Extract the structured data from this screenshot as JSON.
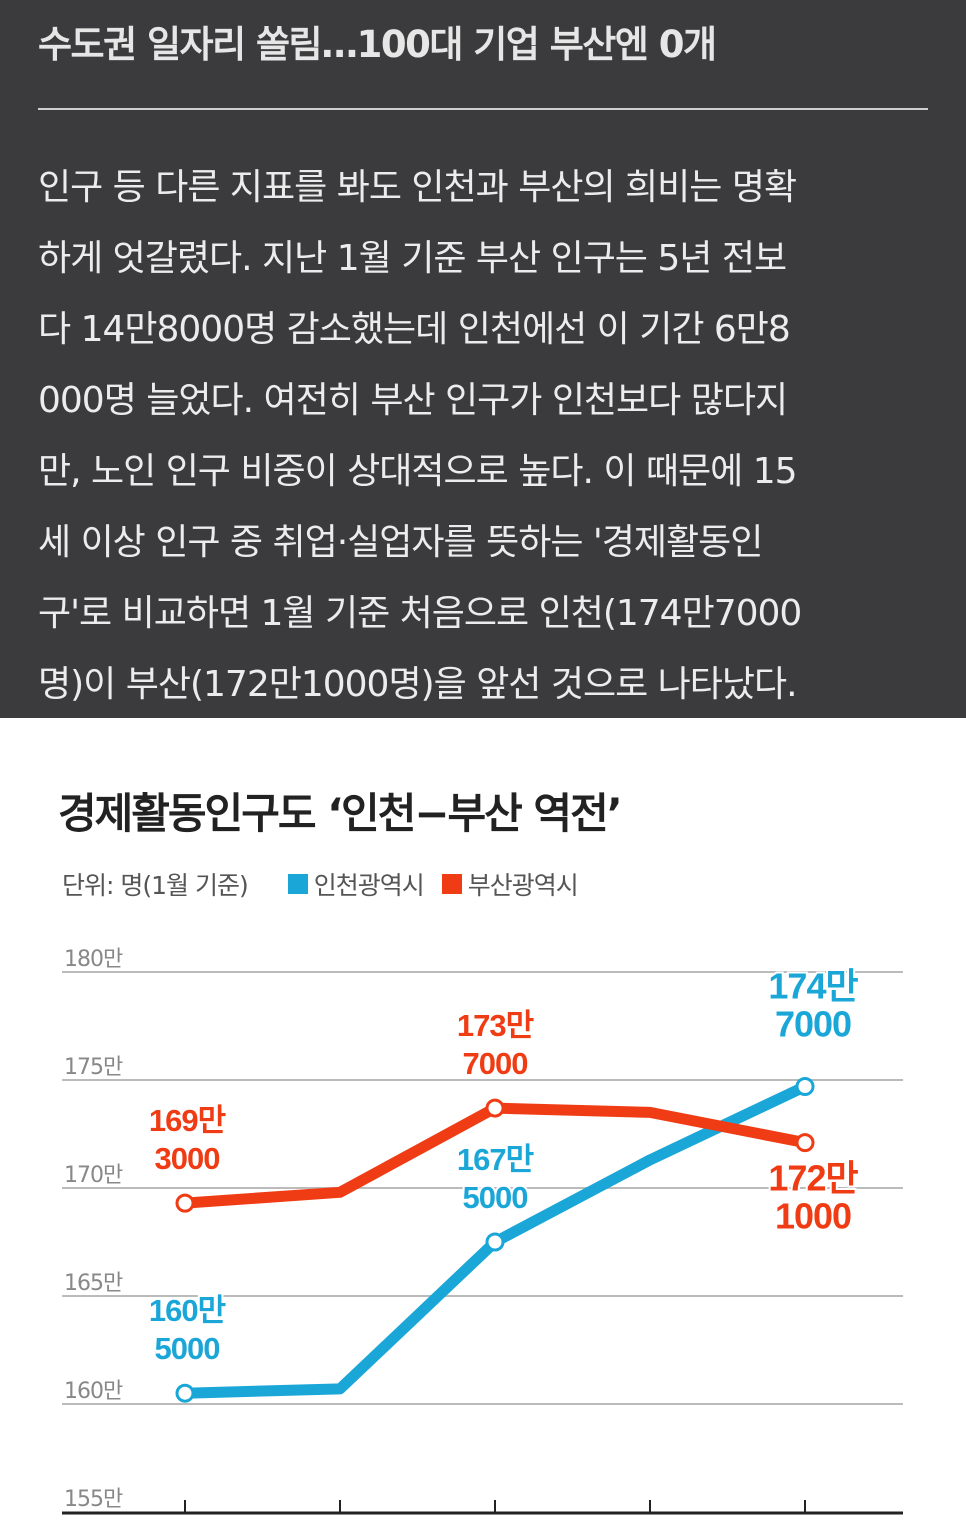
{
  "article": {
    "headline": "수도권 일자리 쏠림…100대 기업 부산엔 0개",
    "paragraph_lines": [
      "인구 등 다른 지표를 봐도 인천과 부산의 희비는 명확",
      "하게 엇갈렸다. 지난 1월 기준 부산 인구는 5년 전보",
      "다 14만8000명 감소했는데 인천에선 이 기간 6만8",
      "000명 늘었다. 여전히 부산 인구가 인천보다 많다지",
      "만, 노인 인구 비중이 상대적으로 높다. 이 때문에 15",
      "세 이상 인구 중 취업·실업자를 뜻하는 '경제활동인",
      "구'로 비교하면 1월 기준 처음으로 인천(174만7000",
      "명)이 부산(172만1000명)을 앞선 것으로 나타났다."
    ]
  },
  "chart_data": {
    "type": "line",
    "title": "경제활동인구도 ‘인천−부산 역전’",
    "unit_label": "단위: 명(1월 기준)",
    "ylim": [
      155,
      180
    ],
    "yticks": [
      180,
      175,
      170,
      165,
      160,
      155
    ],
    "ytick_labels": [
      "180만",
      "175만",
      "170만",
      "165만",
      "160만",
      "155만"
    ],
    "x": [
      1,
      2,
      3,
      4,
      5
    ],
    "grid": true,
    "legend_placement": "top-left",
    "series": [
      {
        "name": "인천광역시",
        "color": "#1aa7d8",
        "values": [
          160.5,
          160.7,
          167.5,
          171.3,
          174.7
        ],
        "labels": [
          [
            "160만",
            "5000"
          ],
          null,
          [
            "167만",
            "5000"
          ],
          null,
          [
            "174만",
            "7000"
          ]
        ]
      },
      {
        "name": "부산광역시",
        "color": "#f03c14",
        "values": [
          169.3,
          169.8,
          173.7,
          173.5,
          172.1
        ],
        "labels": [
          [
            "169만",
            "3000"
          ],
          null,
          [
            "173만",
            "7000"
          ],
          null,
          [
            "172만",
            "1000"
          ]
        ]
      }
    ]
  }
}
